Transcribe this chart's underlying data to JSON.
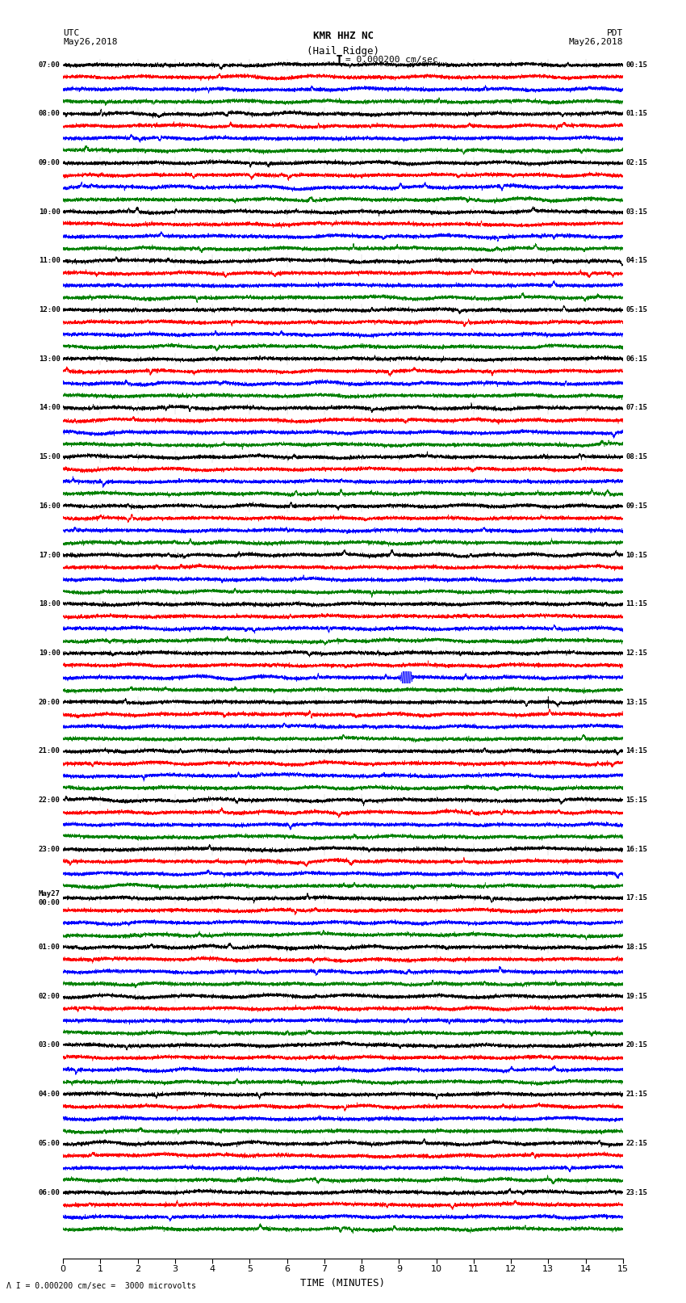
{
  "title_line1": "KMR HHZ NC",
  "title_line2": "(Hail Ridge)",
  "scale_label": "= 0.000200 cm/sec",
  "footer_label": "\\u039b I = 0.000200 cm/sec =  3000 microvolts",
  "utc_label1": "UTC",
  "utc_label2": "May26,2018",
  "pdt_label1": "PDT",
  "pdt_label2": "May26,2018",
  "xlabel": "TIME (MINUTES)",
  "left_times": [
    "07:00",
    "08:00",
    "09:00",
    "10:00",
    "11:00",
    "12:00",
    "13:00",
    "14:00",
    "15:00",
    "16:00",
    "17:00",
    "18:00",
    "19:00",
    "20:00",
    "21:00",
    "22:00",
    "23:00",
    "May27\n00:00",
    "01:00",
    "02:00",
    "03:00",
    "04:00",
    "05:00",
    "06:00"
  ],
  "right_times": [
    "00:15",
    "01:15",
    "02:15",
    "03:15",
    "04:15",
    "05:15",
    "06:15",
    "07:15",
    "08:15",
    "09:15",
    "10:15",
    "11:15",
    "12:15",
    "13:15",
    "14:15",
    "15:15",
    "16:15",
    "17:15",
    "18:15",
    "19:15",
    "20:15",
    "21:15",
    "22:15",
    "23:15"
  ],
  "colors": [
    "black",
    "red",
    "blue",
    "green"
  ],
  "background": "white",
  "num_rows": 24,
  "traces_per_row": 4,
  "time_minutes": 15,
  "fig_width": 8.5,
  "fig_height": 16.13,
  "dpi": 100,
  "n_samples": 9000
}
